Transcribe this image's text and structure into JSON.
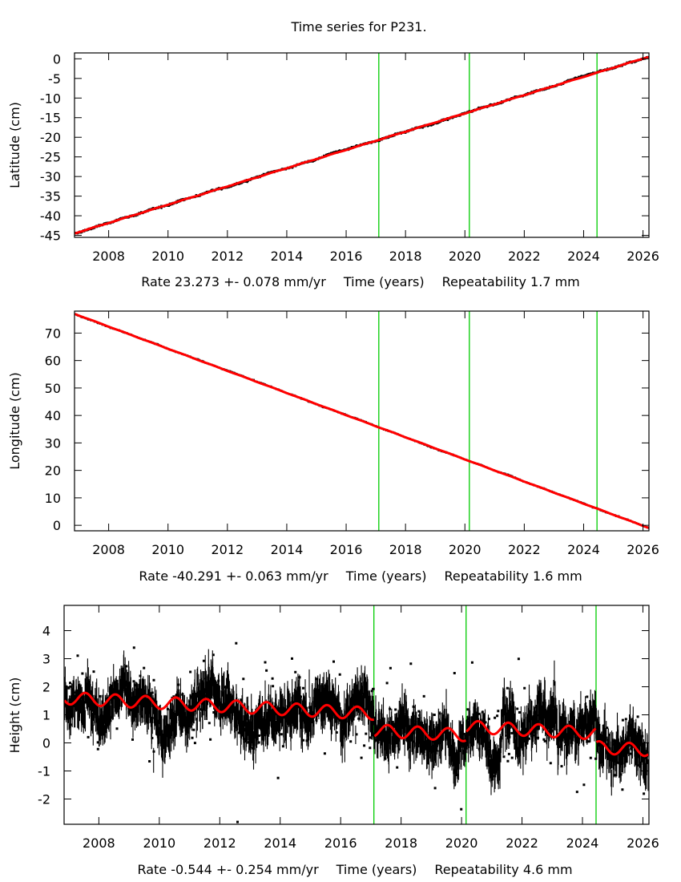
{
  "chart_data": {
    "title": "Time series for P231.",
    "type": "scatter",
    "colors": {
      "data": "#000000",
      "fit": "#ff0000",
      "breaks": "#00cc00",
      "frame": "#000000"
    },
    "break_epochs": [
      2017.1,
      2020.15,
      2024.45
    ],
    "panels": [
      {
        "id": "latitude",
        "ylabel": "Latitude (cm)",
        "xlabel": "Time (years)",
        "rate_text": "Rate 23.273 +- 0.078 mm/yr",
        "xlabel_text": "Time (years)",
        "repeat_text": "Repeatability 1.7 mm",
        "xlim": [
          2006.85,
          2026.2
        ],
        "ylim": [
          -45.5,
          1.5
        ],
        "yticks": [
          0,
          -5,
          -10,
          -15,
          -20,
          -25,
          -30,
          -35,
          -40,
          -45
        ],
        "ytick_labels": [
          "0",
          "-5",
          "-10",
          "-15",
          "-20",
          "-25",
          "-30",
          "-35",
          "-40",
          "-45"
        ],
        "xticks": [
          2008,
          2010,
          2012,
          2014,
          2016,
          2018,
          2020,
          2022,
          2024,
          2026
        ],
        "xtick_labels": [
          "2008",
          "2010",
          "2012",
          "2014",
          "2016",
          "2018",
          "2020",
          "2022",
          "2024",
          "2026"
        ],
        "fit": {
          "x0": 2006.85,
          "y0": -44.5,
          "rate_cm_per_yr": 2.3273,
          "annual_amp": 0.05
        },
        "noise_cm": 0.17
      },
      {
        "id": "longitude",
        "ylabel": "Longitude (cm)",
        "xlabel": "Time (years)",
        "rate_text": "Rate -40.291 +- 0.063 mm/yr",
        "xlabel_text": "Time (years)",
        "repeat_text": "Repeatability 1.6 mm",
        "xlim": [
          2006.85,
          2026.2
        ],
        "ylim": [
          -2,
          78
        ],
        "yticks": [
          70,
          60,
          50,
          40,
          30,
          20,
          10,
          0
        ],
        "ytick_labels": [
          "70",
          "60",
          "50",
          "40",
          "30",
          "20",
          "10",
          "0"
        ],
        "xticks": [
          2008,
          2010,
          2012,
          2014,
          2016,
          2018,
          2020,
          2022,
          2024,
          2026
        ],
        "xtick_labels": [
          "2008",
          "2010",
          "2012",
          "2014",
          "2016",
          "2018",
          "2020",
          "2022",
          "2024",
          "2026"
        ],
        "fit": {
          "x0": 2006.85,
          "y0": 77.0,
          "rate_cm_per_yr": -4.0291,
          "annual_amp": 0.05
        },
        "noise_cm": 0.16
      },
      {
        "id": "height",
        "ylabel": "Height (cm)",
        "xlabel": "Time (years)",
        "rate_text": "Rate -0.544 +- 0.254 mm/yr",
        "xlabel_text": "Time (years)",
        "repeat_text": "Repeatability 4.6 mm",
        "xlim": [
          2006.85,
          2026.2
        ],
        "ylim": [
          -2.9,
          4.9
        ],
        "yticks": [
          4,
          3,
          2,
          1,
          0,
          -1,
          -2
        ],
        "ytick_labels": [
          "4",
          "3",
          "2",
          "1",
          "0",
          "-1",
          "-2"
        ],
        "xticks": [
          2008,
          2010,
          2012,
          2014,
          2016,
          2018,
          2020,
          2022,
          2024,
          2026
        ],
        "xtick_labels": [
          "2008",
          "2010",
          "2012",
          "2014",
          "2016",
          "2018",
          "2020",
          "2022",
          "2024",
          "2026"
        ],
        "fit": {
          "x0": 2006.85,
          "y0": 1.6,
          "rate_cm_per_yr": -0.0544,
          "annual_amp": 0.22,
          "offsets": [
            {
              "epoch": 2017.1,
              "step": -0.6
            },
            {
              "epoch": 2020.15,
              "step": 0.3
            },
            {
              "epoch": 2024.45,
              "step": -0.5
            }
          ]
        },
        "noise_cm": 0.46
      }
    ]
  }
}
